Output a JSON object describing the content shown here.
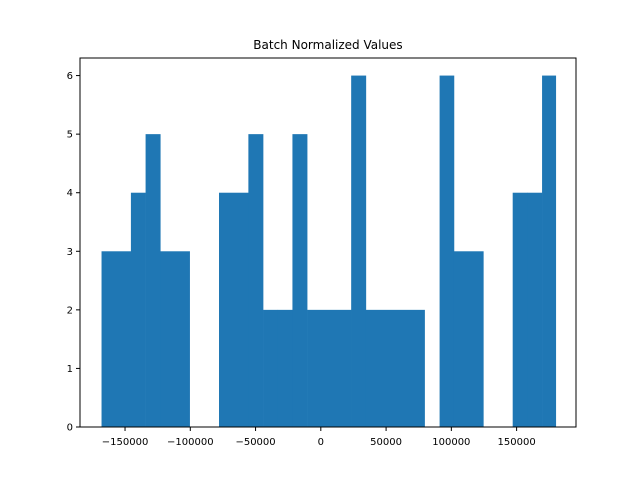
{
  "chart_data": {
    "type": "bar",
    "title": "Batch Normalized Values",
    "xlabel": "",
    "ylabel": "",
    "bin_edges": [
      -168000,
      -145500,
      -123000,
      -100500,
      -78000,
      -55500,
      -33000,
      -10500,
      12000,
      34500,
      57000,
      79500,
      102000,
      124500,
      147000,
      169500,
      180000
    ],
    "bins": [
      {
        "x0": -168000,
        "x1": -145500,
        "count": 3
      },
      {
        "x0": -145500,
        "x1": -134250,
        "count": 4
      },
      {
        "x0": -134250,
        "x1": -123000,
        "count": 5
      },
      {
        "x0": -123000,
        "x1": -100500,
        "count": 3
      },
      {
        "x0": -100500,
        "x1": -78000,
        "count": 0
      },
      {
        "x0": -78000,
        "x1": -55500,
        "count": 4
      },
      {
        "x0": -55500,
        "x1": -44250,
        "count": 5
      },
      {
        "x0": -44250,
        "x1": -33000,
        "count": 2
      },
      {
        "x0": -33000,
        "x1": -21750,
        "count": 2
      },
      {
        "x0": -21750,
        "x1": -10500,
        "count": 5
      },
      {
        "x0": -10500,
        "x1": 23250,
        "count": 2
      },
      {
        "x0": 23250,
        "x1": 34500,
        "count": 6
      },
      {
        "x0": 34500,
        "x1": 79500,
        "count": 2
      },
      {
        "x0": 79500,
        "x1": 91000,
        "count": 0
      },
      {
        "x0": 91000,
        "x1": 102000,
        "count": 6
      },
      {
        "x0": 102000,
        "x1": 124500,
        "count": 3
      },
      {
        "x0": 124500,
        "x1": 147000,
        "count": 0
      },
      {
        "x0": 147000,
        "x1": 158250,
        "count": 4
      },
      {
        "x0": 158250,
        "x1": 169500,
        "count": 4
      },
      {
        "x0": 169500,
        "x1": 180000,
        "count": 6
      }
    ],
    "xlim": [
      -184500,
      195500
    ],
    "ylim": [
      0,
      6.3
    ],
    "xticks": [
      -150000,
      -100000,
      -50000,
      0,
      50000,
      100000,
      150000
    ],
    "xtick_labels": [
      "−150000",
      "−100000",
      "−50000",
      "0",
      "50000",
      "100000",
      "150000"
    ],
    "yticks": [
      0,
      1,
      2,
      3,
      4,
      5,
      6
    ],
    "ytick_labels": [
      "0",
      "1",
      "2",
      "3",
      "4",
      "5",
      "6"
    ],
    "bar_color": "#1f77b4",
    "grid": false,
    "legend": "none"
  }
}
